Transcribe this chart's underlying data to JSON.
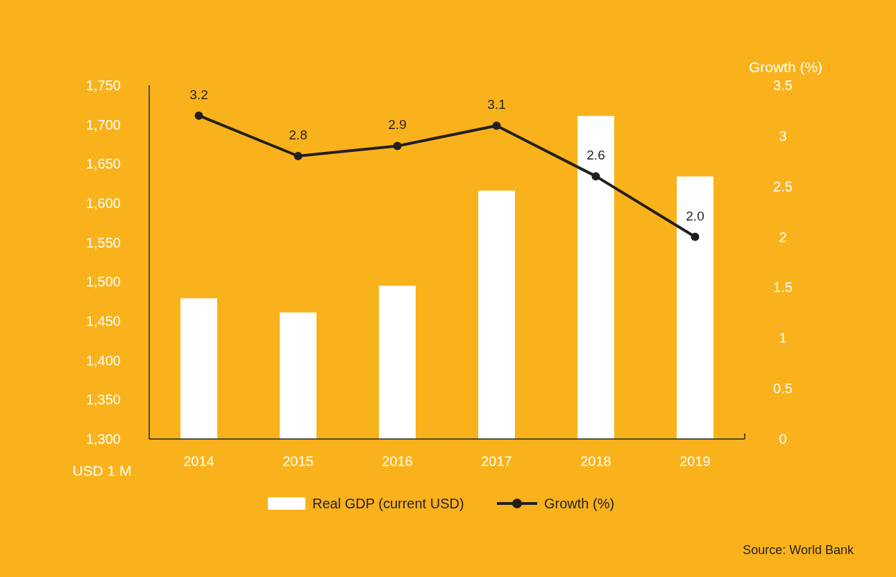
{
  "chart_data": {
    "type": "bar",
    "categories": [
      "2014",
      "2015",
      "2016",
      "2017",
      "2018",
      "2019"
    ],
    "series": [
      {
        "name": "Real GDP (current USD)",
        "color": "#ffffff",
        "values": [
          1479,
          1461,
          1495,
          1616,
          1711,
          1634
        ]
      },
      {
        "name": "Growth (%)",
        "type": "line",
        "axis": "y2",
        "color": "#231f20",
        "values": [
          3.2,
          2.8,
          2.9,
          3.1,
          2.6,
          2.0
        ],
        "value_labels": [
          "3.2",
          "2.8",
          "2.9",
          "3.1",
          "2.6",
          "2.0"
        ],
        "marker": "circle"
      }
    ],
    "ylabel": "USD 1 M",
    "y2label": "Growth (%)",
    "ylim": [
      1300,
      1750
    ],
    "yticks": [
      {
        "value": 1300,
        "label": "1,300"
      },
      {
        "value": 1350,
        "label": "1,350"
      },
      {
        "value": 1400,
        "label": "1,400"
      },
      {
        "value": 1450,
        "label": "1,450"
      },
      {
        "value": 1500,
        "label": "1,500"
      },
      {
        "value": 1550,
        "label": "1,550"
      },
      {
        "value": 1600,
        "label": "1,600"
      },
      {
        "value": 1650,
        "label": "1,650"
      },
      {
        "value": 1700,
        "label": "1,700"
      },
      {
        "value": 1750,
        "label": "1,750"
      }
    ],
    "y2lim": [
      0,
      3.5
    ],
    "y2ticks": [
      0,
      0.5,
      1,
      1.5,
      2,
      2.5,
      3,
      3.5
    ],
    "grid": false,
    "legend": "bottom",
    "annotations": [
      "Source: World Bank"
    ]
  }
}
